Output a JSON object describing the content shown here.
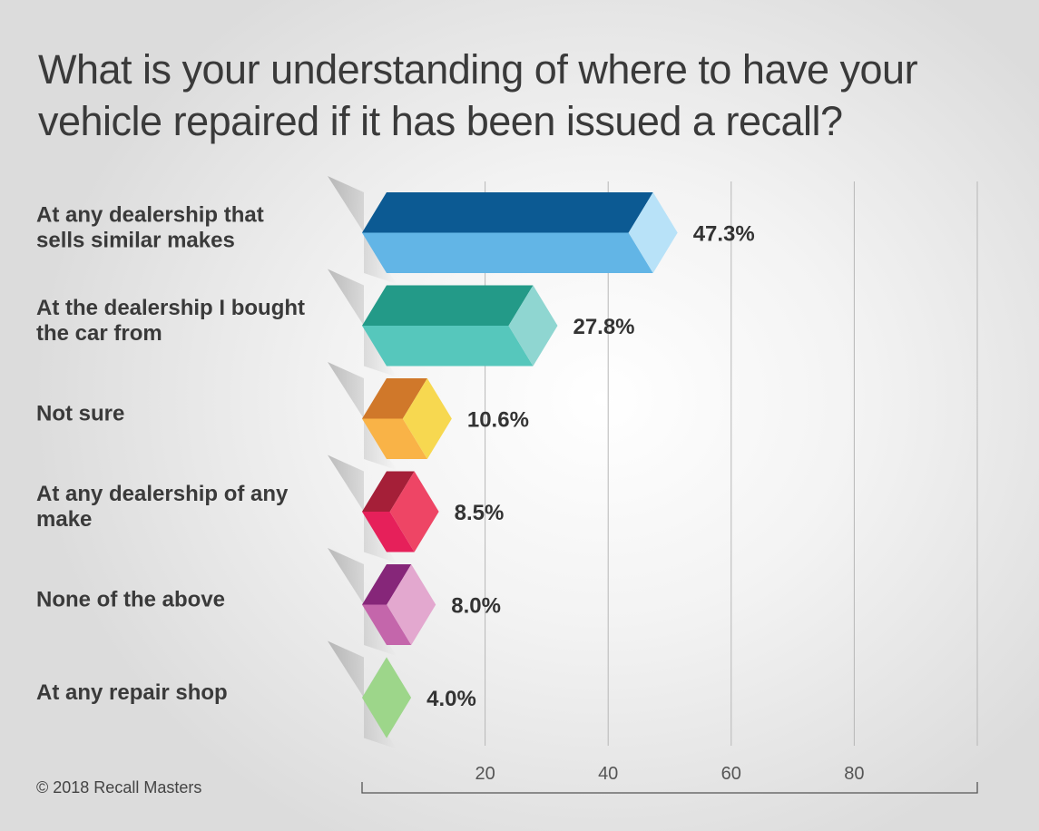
{
  "title": "What is your understanding of where to have your vehicle repaired if it has been issued a recall?",
  "copyright": "© 2018 Recall Masters",
  "chart_data": {
    "type": "bar",
    "orientation": "horizontal",
    "title": "What is your understanding of where to have your vehicle repaired if it has been issued a recall?",
    "xlabel": "",
    "ylabel": "",
    "xlim": [
      0,
      100
    ],
    "grid": true,
    "ticks": [
      20,
      40,
      60,
      80
    ],
    "categories": [
      [
        "At any dealership that",
        "sells similar makes"
      ],
      [
        "At the dealership I bought",
        "the car from"
      ],
      [
        "Not sure"
      ],
      [
        "At any dealership of any",
        "make"
      ],
      [
        "None of the above"
      ],
      [
        "At any repair shop"
      ]
    ],
    "values": [
      47.3,
      27.8,
      10.6,
      8.5,
      8.0,
      4.0
    ],
    "value_labels": [
      "47.3%",
      "27.8%",
      "10.6%",
      "8.5%",
      "8.0%",
      "4.0%"
    ],
    "colors": [
      {
        "top": "#0c5a93",
        "front": "#62b5e6",
        "side": "#b8e2f8"
      },
      {
        "top": "#239a88",
        "front": "#56c7bc",
        "side": "#8fd6d1"
      },
      {
        "top": "#d0782a",
        "front": "#f9b347",
        "side": "#f7d850"
      },
      {
        "top": "#a51f38",
        "front": "#e6205a",
        "side": "#ee4565"
      },
      {
        "top": "#862679",
        "front": "#c466ab",
        "side": "#e3a8cf"
      },
      {
        "top": "#2f8a40",
        "front": "#5cbd4f",
        "side": "#9dd68a"
      }
    ]
  }
}
